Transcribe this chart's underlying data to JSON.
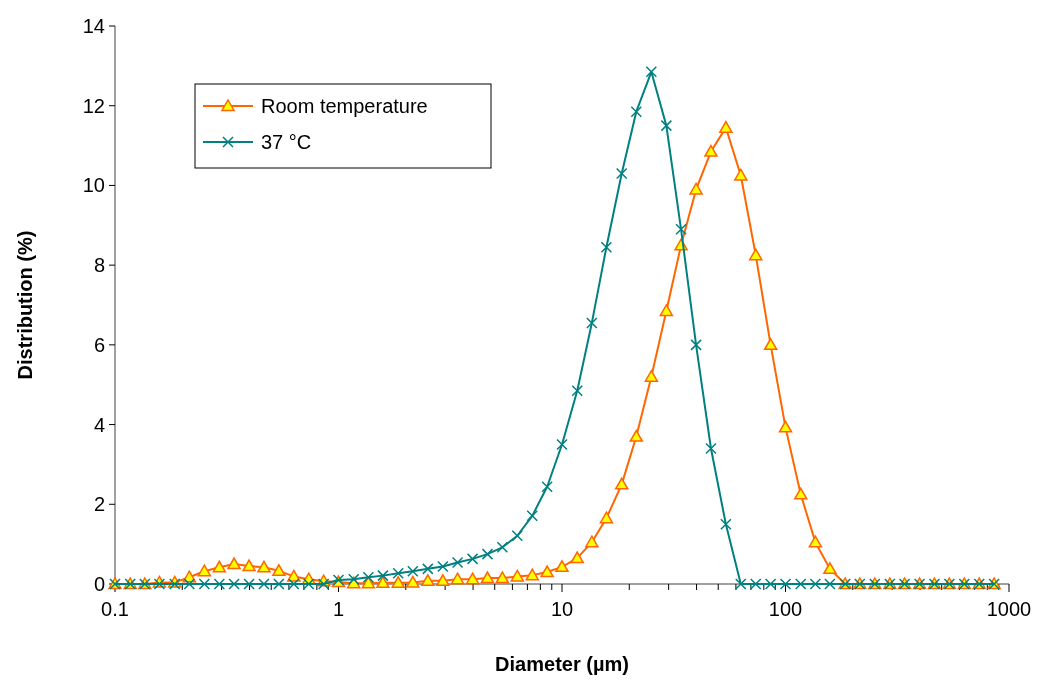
{
  "chart_data": {
    "type": "line",
    "xlabel": "Diameter (µm)",
    "ylabel": "Distribution (%)",
    "log": "x",
    "legend": "top left",
    "line_style": "solid",
    "grid": false,
    "x": [
      0.1,
      0.117,
      0.136,
      0.158,
      0.185,
      0.215,
      0.251,
      0.293,
      0.341,
      0.398,
      0.464,
      0.541,
      0.631,
      0.736,
      0.858,
      1,
      1.17,
      1.36,
      1.58,
      1.85,
      2.15,
      2.51,
      2.93,
      3.41,
      3.98,
      4.64,
      5.41,
      6.31,
      7.36,
      8.58,
      10,
      11.7,
      13.6,
      15.8,
      18.5,
      21.5,
      25.1,
      29.3,
      34.1,
      39.8,
      46.4,
      54.1,
      63.1,
      73.6,
      85.8,
      100,
      117,
      136,
      158,
      185,
      215,
      251,
      293,
      341,
      398,
      464,
      541,
      631,
      736,
      858
    ],
    "series": [
      {
        "name": "Room temperature",
        "color": "#ff6600",
        "marker": "triangle",
        "values": [
          0,
          0,
          0,
          0.04,
          0.04,
          0.17,
          0.32,
          0.42,
          0.5,
          0.45,
          0.42,
          0.33,
          0.19,
          0.12,
          0.07,
          0.05,
          0.02,
          0.02,
          0.03,
          0.03,
          0.04,
          0.08,
          0.08,
          0.12,
          0.12,
          0.15,
          0.15,
          0.19,
          0.22,
          0.3,
          0.43,
          0.65,
          1.05,
          1.65,
          2.5,
          3.7,
          5.2,
          6.85,
          8.5,
          9.9,
          10.85,
          11.45,
          10.25,
          8.25,
          6.0,
          3.93,
          2.25,
          1.05,
          0.38,
          0,
          0,
          0,
          0,
          0,
          0,
          0,
          0,
          0,
          0,
          0
        ]
      },
      {
        "name": "37 °C",
        "color": "#008080",
        "marker": "cross",
        "values": [
          0,
          0,
          0,
          0,
          0,
          0,
          0,
          0,
          0,
          0,
          0,
          0,
          0,
          0,
          0,
          0.1,
          0.12,
          0.17,
          0.21,
          0.27,
          0.32,
          0.38,
          0.44,
          0.54,
          0.63,
          0.75,
          0.92,
          1.21,
          1.71,
          2.44,
          3.5,
          4.85,
          6.55,
          8.45,
          10.3,
          11.85,
          12.85,
          11.5,
          8.9,
          6.0,
          3.4,
          1.5,
          0,
          0,
          0,
          0,
          0,
          0,
          0,
          0,
          0,
          0,
          0,
          0,
          0,
          0,
          0,
          0,
          0,
          0
        ]
      }
    ],
    "xlim": [
      0.1,
      1000
    ],
    "xticks": [
      0.1,
      {
        "value": 0.2,
        "label": null
      },
      {
        "value": 0.3,
        "label": null
      },
      {
        "value": 0.4,
        "label": null
      },
      {
        "value": 0.5,
        "label": null
      },
      {
        "value": 0.6,
        "label": null
      },
      {
        "value": 0.7,
        "label": null
      },
      {
        "value": 0.8,
        "label": null
      },
      {
        "value": 0.9,
        "label": null
      },
      1,
      {
        "value": 2,
        "label": null
      },
      {
        "value": 3,
        "label": null
      },
      {
        "value": 4,
        "label": null
      },
      {
        "value": 5,
        "label": null
      },
      {
        "value": 6,
        "label": null
      },
      {
        "value": 7,
        "label": null
      },
      {
        "value": 8,
        "label": null
      },
      {
        "value": 9,
        "label": null
      },
      10,
      {
        "value": 20,
        "label": null
      },
      {
        "value": 30,
        "label": null
      },
      {
        "value": 40,
        "label": null
      },
      {
        "value": 50,
        "label": null
      },
      {
        "value": 60,
        "label": null
      },
      {
        "value": 70,
        "label": null
      },
      {
        "value": 80,
        "label": null
      },
      {
        "value": 90,
        "label": null
      },
      100,
      {
        "value": 200,
        "label": null
      },
      {
        "value": 300,
        "label": null
      },
      {
        "value": 400,
        "label": null
      },
      {
        "value": 500,
        "label": null
      },
      {
        "value": 600,
        "label": null
      },
      {
        "value": 700,
        "label": null
      },
      {
        "value": 800,
        "label": null
      },
      {
        "value": 900,
        "label": null
      },
      1000
    ],
    "ylim": [
      0,
      14
    ],
    "yticks": [
      0,
      2,
      4,
      6,
      8,
      10,
      12,
      14
    ]
  }
}
